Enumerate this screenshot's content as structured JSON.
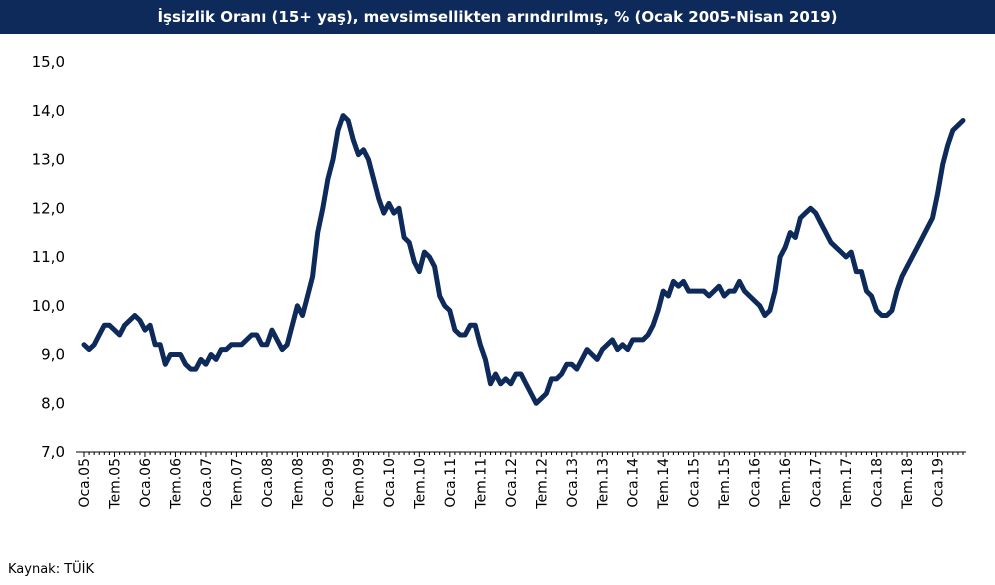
{
  "chart_data": {
    "type": "line",
    "title": "İşsizlik Oranı (15+ yaş), mevsimsellikten arındırılmış, % (Ocak 2005-Nisan 2019)",
    "xlabel": "",
    "ylabel": "",
    "ylim": [
      7.0,
      15.0
    ],
    "yticks": [
      "7,0",
      "8,0",
      "9,0",
      "10,0",
      "11,0",
      "12,0",
      "13,0",
      "14,0",
      "15,0"
    ],
    "xtick_labels": [
      "Oca.05",
      "Tem.05",
      "Oca.06",
      "Tem.06",
      "Oca.07",
      "Tem.07",
      "Oca.08",
      "Tem.08",
      "Oca.09",
      "Tem.09",
      "Oca.10",
      "Tem.10",
      "Oca.11",
      "Tem.11",
      "Oca.12",
      "Tem.12",
      "Oca.13",
      "Tem.13",
      "Oca.14",
      "Tem.14",
      "Oca.15",
      "Tem.15",
      "Oca.16",
      "Tem.16",
      "Oca.17",
      "Tem.17",
      "Oca.18",
      "Tem.18",
      "Oca.19"
    ],
    "line_color": "#0d2a5a",
    "series": [
      {
        "name": "İşsizlik Oranı",
        "values": [
          9.2,
          9.1,
          9.2,
          9.4,
          9.6,
          9.6,
          9.5,
          9.4,
          9.6,
          9.7,
          9.8,
          9.7,
          9.5,
          9.6,
          9.2,
          9.2,
          8.8,
          9.0,
          9.0,
          9.0,
          8.8,
          8.7,
          8.7,
          8.9,
          8.8,
          9.0,
          8.9,
          9.1,
          9.1,
          9.2,
          9.2,
          9.2,
          9.3,
          9.4,
          9.4,
          9.2,
          9.2,
          9.5,
          9.3,
          9.1,
          9.2,
          9.6,
          10.0,
          9.8,
          10.2,
          10.6,
          11.5,
          12.0,
          12.6,
          13.0,
          13.6,
          13.9,
          13.8,
          13.4,
          13.1,
          13.2,
          13.0,
          12.6,
          12.2,
          11.9,
          12.1,
          11.9,
          12.0,
          11.4,
          11.3,
          10.9,
          10.7,
          11.1,
          11.0,
          10.8,
          10.2,
          10.0,
          9.9,
          9.5,
          9.4,
          9.4,
          9.6,
          9.6,
          9.2,
          8.9,
          8.4,
          8.6,
          8.4,
          8.5,
          8.4,
          8.6,
          8.6,
          8.4,
          8.2,
          8.0,
          8.1,
          8.2,
          8.5,
          8.5,
          8.6,
          8.8,
          8.8,
          8.7,
          8.9,
          9.1,
          9.0,
          8.9,
          9.1,
          9.2,
          9.3,
          9.1,
          9.2,
          9.1,
          9.3,
          9.3,
          9.3,
          9.4,
          9.6,
          9.9,
          10.3,
          10.2,
          10.5,
          10.4,
          10.5,
          10.3,
          10.3,
          10.3,
          10.3,
          10.2,
          10.3,
          10.4,
          10.2,
          10.3,
          10.3,
          10.5,
          10.3,
          10.2,
          10.1,
          10.0,
          9.8,
          9.9,
          10.3,
          11.0,
          11.2,
          11.5,
          11.4,
          11.8,
          11.9,
          12.0,
          11.9,
          11.7,
          11.5,
          11.3,
          11.2,
          11.1,
          11.0,
          11.1,
          10.7,
          10.7,
          10.3,
          10.2,
          9.9,
          9.8,
          9.8,
          9.9,
          10.3,
          10.6,
          10.8,
          11.0,
          11.2,
          11.4,
          11.6,
          11.8,
          12.3,
          12.9,
          13.3,
          13.6,
          13.7,
          13.8
        ]
      }
    ]
  },
  "footer": {
    "source": "Kaynak: TÜİK"
  }
}
